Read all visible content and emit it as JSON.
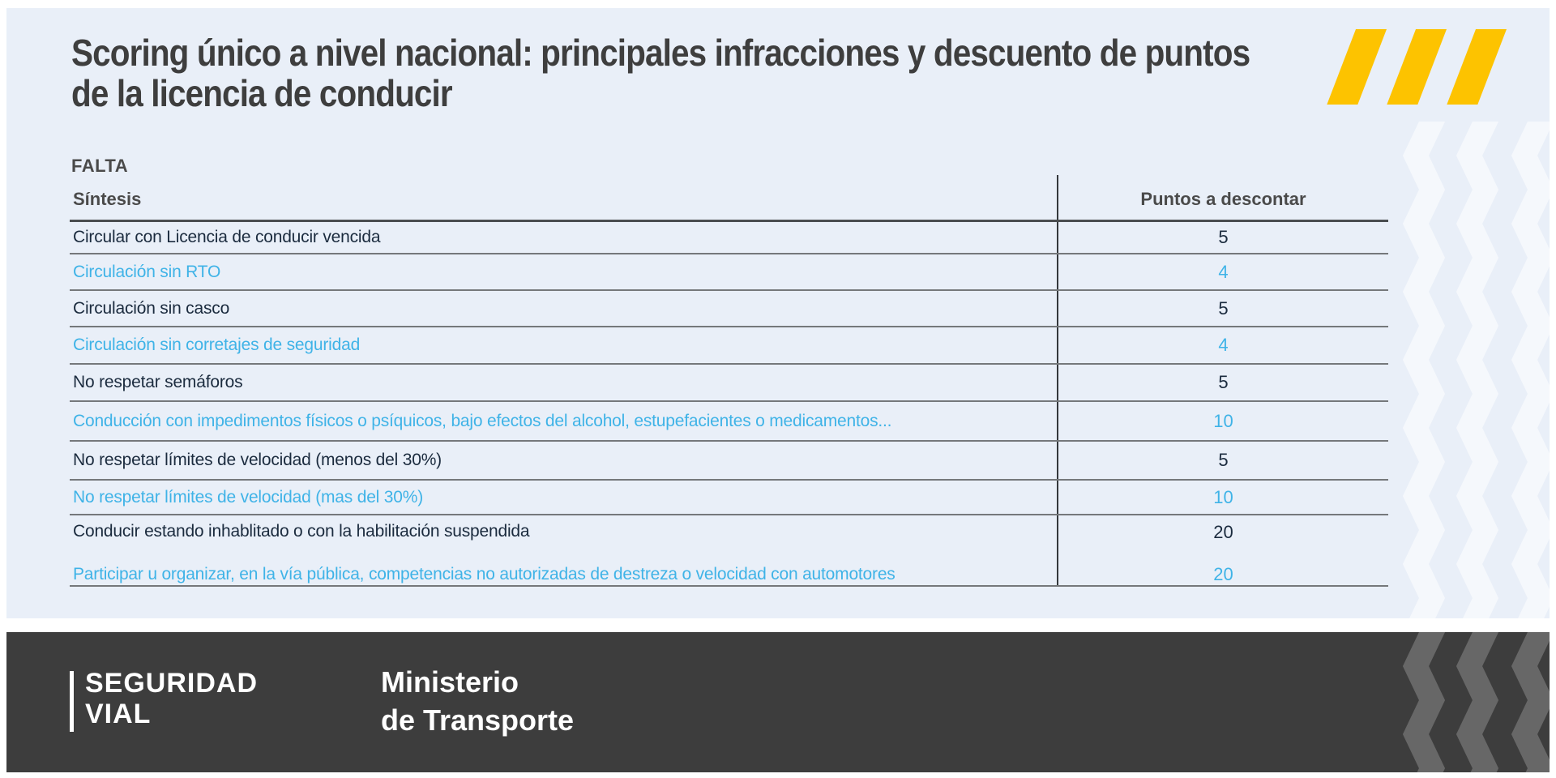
{
  "header": {
    "title_line1": "Scoring único a nivel nacional: principales infracciones y descuento de puntos",
    "title_line2": "de la licencia de conducir"
  },
  "table": {
    "group_label": "FALTA",
    "synthesis_header": "Síntesis",
    "points_header": "Puntos a descontar",
    "rows": [
      {
        "label": "Circular con Licencia de conducir vencida",
        "points": "5"
      },
      {
        "label": "Circulación sin RTO",
        "points": "4"
      },
      {
        "label": "Circulación sin casco",
        "points": "5"
      },
      {
        "label": "Circulación sin corretajes de seguridad",
        "points": "4"
      },
      {
        "label": "No respetar semáforos",
        "points": "5"
      },
      {
        "label": "Conducción con impedimentos físicos o psíquicos, bajo efectos del alcohol, estupefacientes o medicamentos...",
        "points": "10"
      },
      {
        "label": "No respetar límites de velocidad (menos del 30%)",
        "points": "5"
      },
      {
        "label": "No respetar límites de velocidad (mas del 30%)",
        "points": "10"
      },
      {
        "label": "Conducir estando inhablitado o con la habilitación suspendida",
        "points": "20"
      },
      {
        "label": "Participar u organizar, en la vía pública, competencias no autorizadas de destreza o velocidad con automotores",
        "points": "20"
      }
    ]
  },
  "footer": {
    "brand_line1": "SEGURIDAD",
    "brand_line2": "VIAL",
    "ministry_line1": "Ministerio",
    "ministry_line2": "de Transporte"
  },
  "colors": {
    "accent_yellow": "#FDC300",
    "highlight_cyan": "#3FB3E7",
    "dark_text": "#1B2B3E",
    "heading_gray": "#4A4A4A",
    "panel_blue": "#E9EFF8",
    "footer_dark": "#3D3D3D"
  }
}
